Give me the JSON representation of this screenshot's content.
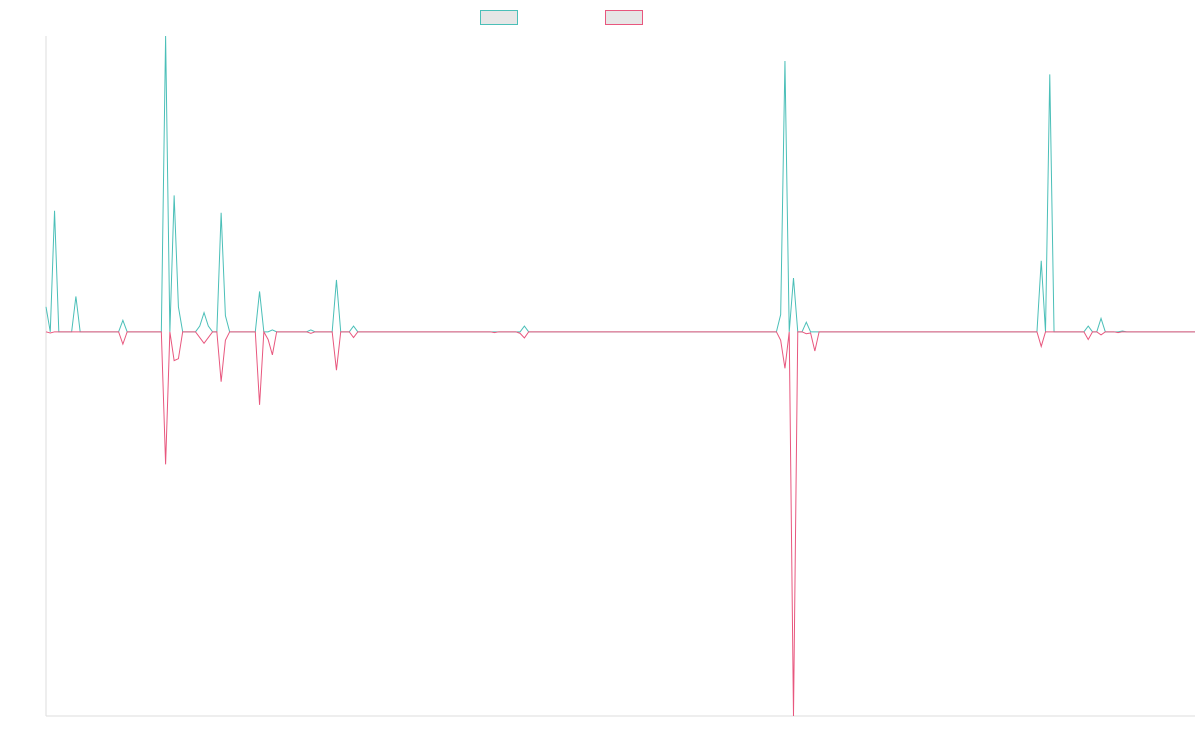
{
  "chart_data": {
    "type": "line",
    "title": "",
    "xlabel": "",
    "ylabel": "",
    "grid": false,
    "legend_position": "top-center",
    "x_count": 270,
    "ylim": [
      -1.0,
      0.77
    ],
    "series": [
      {
        "key": "teal",
        "name": "",
        "color": "#4bbfb8",
        "points": [
          [
            0,
            0.065
          ],
          [
            1,
            0
          ],
          [
            2,
            0.315
          ],
          [
            3,
            0
          ],
          [
            4,
            0
          ],
          [
            5,
            0
          ],
          [
            6,
            0
          ],
          [
            7,
            0.092
          ],
          [
            8,
            0
          ],
          [
            17,
            0
          ],
          [
            18,
            0.03
          ],
          [
            19,
            0
          ],
          [
            27,
            0
          ],
          [
            28,
            0.77
          ],
          [
            29,
            0
          ],
          [
            30,
            0.355
          ],
          [
            31,
            0.065
          ],
          [
            32,
            0
          ],
          [
            35,
            0
          ],
          [
            36,
            0.015
          ],
          [
            37,
            0.05
          ],
          [
            38,
            0.015
          ],
          [
            39,
            0
          ],
          [
            40,
            0
          ],
          [
            41,
            0.31
          ],
          [
            42,
            0.042
          ],
          [
            43,
            0
          ],
          [
            44,
            0
          ],
          [
            45,
            0
          ],
          [
            46,
            0
          ],
          [
            47,
            0
          ],
          [
            48,
            0
          ],
          [
            49,
            0
          ],
          [
            50,
            0.105
          ],
          [
            51,
            0
          ],
          [
            52,
            0
          ],
          [
            53,
            0.005
          ],
          [
            54,
            0
          ],
          [
            60,
            0
          ],
          [
            61,
            0
          ],
          [
            62,
            0.005
          ],
          [
            63,
            0
          ],
          [
            66,
            0
          ],
          [
            67,
            0
          ],
          [
            68,
            0.135
          ],
          [
            69,
            0
          ],
          [
            70,
            0
          ],
          [
            71,
            0
          ],
          [
            72,
            0.015
          ],
          [
            73,
            0
          ],
          [
            104,
            0
          ],
          [
            105,
            0
          ],
          [
            106,
            0
          ],
          [
            110,
            0
          ],
          [
            111,
            0
          ],
          [
            112,
            0.015
          ],
          [
            113,
            0
          ],
          [
            170,
            0
          ],
          [
            171,
            0
          ],
          [
            172,
            0.045
          ],
          [
            173,
            0.705
          ],
          [
            174,
            0
          ],
          [
            175,
            0.14
          ],
          [
            176,
            0
          ],
          [
            177,
            0
          ],
          [
            178,
            0.025
          ],
          [
            179,
            0
          ],
          [
            180,
            0
          ],
          [
            181,
            0
          ],
          [
            231,
            0
          ],
          [
            232,
            0
          ],
          [
            233,
            0.185
          ],
          [
            234,
            0
          ],
          [
            235,
            0.67
          ],
          [
            236,
            0
          ],
          [
            237,
            0
          ],
          [
            243,
            0
          ],
          [
            244,
            0.015
          ],
          [
            245,
            0
          ],
          [
            246,
            0
          ],
          [
            247,
            0.035
          ],
          [
            248,
            0
          ],
          [
            250,
            0
          ],
          [
            251,
            0
          ],
          [
            252,
            0.002
          ],
          [
            253,
            0
          ],
          [
            269,
            0
          ]
        ]
      },
      {
        "key": "pink",
        "name": "",
        "color": "#e8577e",
        "points": [
          [
            0,
            0
          ],
          [
            1,
            -0.003
          ],
          [
            2,
            0
          ],
          [
            17,
            0
          ],
          [
            18,
            -0.032
          ],
          [
            19,
            0
          ],
          [
            27,
            0
          ],
          [
            28,
            -0.345
          ],
          [
            29,
            0
          ],
          [
            30,
            -0.075
          ],
          [
            31,
            -0.07
          ],
          [
            32,
            0
          ],
          [
            35,
            0
          ],
          [
            36,
            -0.015
          ],
          [
            37,
            -0.03
          ],
          [
            38,
            -0.015
          ],
          [
            39,
            0
          ],
          [
            40,
            0
          ],
          [
            41,
            -0.13
          ],
          [
            42,
            -0.022
          ],
          [
            43,
            0
          ],
          [
            44,
            0
          ],
          [
            45,
            0
          ],
          [
            46,
            0
          ],
          [
            47,
            0
          ],
          [
            48,
            0
          ],
          [
            49,
            0
          ],
          [
            50,
            -0.19
          ],
          [
            51,
            0
          ],
          [
            52,
            -0.02
          ],
          [
            53,
            -0.06
          ],
          [
            54,
            0
          ],
          [
            60,
            0
          ],
          [
            61,
            0
          ],
          [
            62,
            -0.004
          ],
          [
            63,
            0
          ],
          [
            66,
            0
          ],
          [
            67,
            0
          ],
          [
            68,
            -0.1
          ],
          [
            69,
            0
          ],
          [
            70,
            0
          ],
          [
            71,
            0
          ],
          [
            72,
            -0.015
          ],
          [
            73,
            0
          ],
          [
            104,
            0
          ],
          [
            105,
            -0.002
          ],
          [
            106,
            0
          ],
          [
            110,
            0
          ],
          [
            111,
            -0.004
          ],
          [
            112,
            -0.016
          ],
          [
            113,
            0
          ],
          [
            170,
            0
          ],
          [
            171,
            0
          ],
          [
            172,
            -0.022
          ],
          [
            173,
            -0.095
          ],
          [
            174,
            0
          ],
          [
            175,
            -1.0
          ],
          [
            176,
            0
          ],
          [
            177,
            0
          ],
          [
            178,
            -0.005
          ],
          [
            179,
            -0.003
          ],
          [
            180,
            -0.05
          ],
          [
            181,
            0
          ],
          [
            231,
            0
          ],
          [
            232,
            0
          ],
          [
            233,
            -0.038
          ],
          [
            234,
            0
          ],
          [
            243,
            0
          ],
          [
            244,
            -0.02
          ],
          [
            245,
            0
          ],
          [
            246,
            0
          ],
          [
            247,
            -0.008
          ],
          [
            248,
            0
          ],
          [
            250,
            0
          ],
          [
            251,
            -0.002
          ],
          [
            252,
            0
          ],
          [
            269,
            0
          ]
        ]
      }
    ]
  },
  "colors": {
    "axis": "#dddddd",
    "background": "#ffffff"
  }
}
